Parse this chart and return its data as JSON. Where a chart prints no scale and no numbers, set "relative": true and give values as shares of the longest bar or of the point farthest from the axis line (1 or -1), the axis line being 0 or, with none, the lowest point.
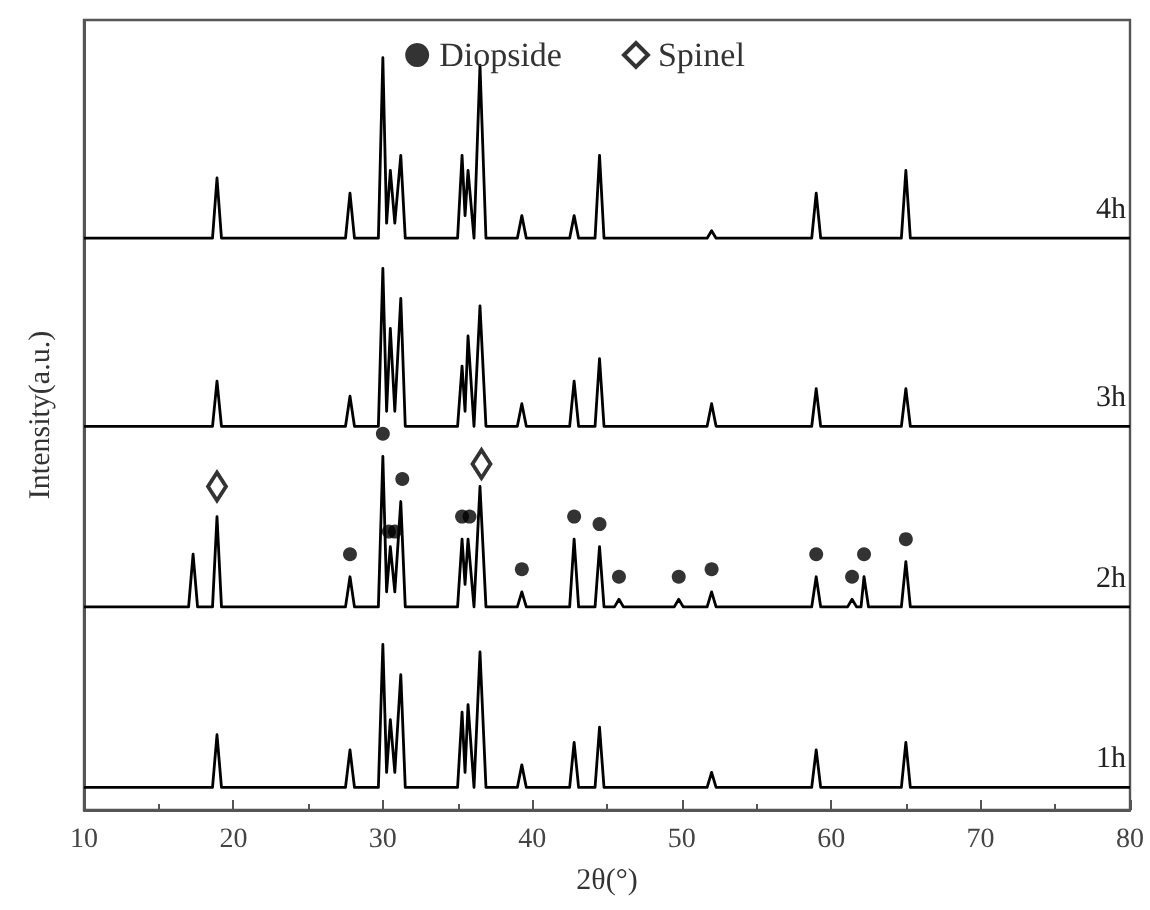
{
  "chart_data": {
    "type": "line",
    "relative": true,
    "xlabel": "2θ(°)",
    "ylabel": "Intensity(a.u.)",
    "xlim": [
      10,
      80
    ],
    "xticks": [
      10,
      20,
      30,
      40,
      50,
      60,
      70,
      80
    ],
    "grid": false,
    "legend": "top",
    "marker": "none",
    "line_style": "solid",
    "series": [
      {
        "name": "4h",
        "color": "#000000",
        "x": [
          10,
          18.6,
          18.9,
          19.2,
          27.5,
          27.8,
          28.1,
          29.7,
          30.0,
          30.25,
          30.5,
          30.8,
          31.2,
          31.5,
          35.0,
          35.3,
          35.5,
          35.7,
          36.1,
          36.5,
          36.9,
          39.0,
          39.3,
          39.6,
          42.5,
          42.8,
          43.1,
          44.2,
          44.5,
          44.8,
          51.7,
          52,
          52.3,
          58.7,
          59,
          59.3,
          64.7,
          65,
          65.3,
          80
        ],
        "values": [
          0.76,
          0.76,
          0.84,
          0.76,
          0.76,
          0.82,
          0.76,
          0.76,
          1.0,
          0.78,
          0.85,
          0.78,
          0.87,
          0.76,
          0.76,
          0.87,
          0.79,
          0.85,
          0.76,
          0.99,
          0.76,
          0.76,
          0.79,
          0.76,
          0.76,
          0.79,
          0.76,
          0.76,
          0.87,
          0.76,
          0.76,
          0.77,
          0.76,
          0.76,
          0.82,
          0.76,
          0.76,
          0.85,
          0.76,
          0.76
        ]
      },
      {
        "name": "3h",
        "color": "#000000",
        "x": [
          10,
          18.6,
          18.9,
          19.2,
          27.5,
          27.8,
          28.1,
          29.7,
          30.0,
          30.25,
          30.5,
          30.8,
          31.2,
          31.5,
          35.0,
          35.3,
          35.5,
          35.7,
          36.1,
          36.5,
          36.9,
          39.0,
          39.3,
          39.6,
          42.5,
          42.8,
          43.1,
          44.2,
          44.5,
          44.8,
          51.7,
          52,
          52.3,
          58.7,
          59,
          59.3,
          64.7,
          65,
          65.3,
          80
        ],
        "values": [
          0.51,
          0.51,
          0.57,
          0.51,
          0.51,
          0.55,
          0.51,
          0.51,
          0.72,
          0.53,
          0.64,
          0.53,
          0.68,
          0.51,
          0.51,
          0.59,
          0.53,
          0.63,
          0.51,
          0.67,
          0.51,
          0.51,
          0.54,
          0.51,
          0.51,
          0.57,
          0.51,
          0.51,
          0.6,
          0.51,
          0.51,
          0.54,
          0.51,
          0.51,
          0.56,
          0.51,
          0.51,
          0.56,
          0.51,
          0.51
        ]
      },
      {
        "name": "2h",
        "color": "#000000",
        "x": [
          10,
          17.0,
          17.3,
          17.6,
          18.6,
          18.9,
          19.2,
          27.5,
          27.8,
          28.1,
          29.7,
          30.0,
          30.25,
          30.5,
          30.8,
          31.2,
          31.5,
          35.0,
          35.3,
          35.5,
          35.7,
          36.1,
          36.5,
          36.9,
          39.0,
          39.3,
          39.6,
          42.5,
          42.8,
          43.1,
          44.2,
          44.5,
          44.8,
          45.5,
          45.8,
          46.1,
          49.5,
          49.8,
          50.1,
          51.7,
          52,
          52.3,
          58.7,
          59,
          59.3,
          61.1,
          61.4,
          61.7,
          62.0,
          62.2,
          62.5,
          64.7,
          65,
          65.3,
          80
        ],
        "values": [
          0.27,
          0.27,
          0.34,
          0.27,
          0.27,
          0.39,
          0.27,
          0.27,
          0.31,
          0.27,
          0.27,
          0.47,
          0.29,
          0.35,
          0.29,
          0.41,
          0.27,
          0.27,
          0.36,
          0.3,
          0.36,
          0.27,
          0.43,
          0.27,
          0.27,
          0.29,
          0.27,
          0.27,
          0.36,
          0.27,
          0.27,
          0.35,
          0.27,
          0.27,
          0.28,
          0.27,
          0.27,
          0.28,
          0.27,
          0.27,
          0.29,
          0.27,
          0.27,
          0.31,
          0.27,
          0.27,
          0.28,
          0.27,
          0.27,
          0.31,
          0.27,
          0.27,
          0.33,
          0.27,
          0.27
        ]
      },
      {
        "name": "1h",
        "color": "#000000",
        "x": [
          10,
          18.6,
          18.9,
          19.2,
          27.5,
          27.8,
          28.1,
          29.7,
          30.0,
          30.25,
          30.5,
          30.8,
          31.2,
          31.5,
          35.0,
          35.3,
          35.5,
          35.7,
          36.1,
          36.5,
          36.9,
          39.0,
          39.3,
          39.6,
          42.5,
          42.8,
          43.1,
          44.2,
          44.5,
          44.8,
          51.7,
          52,
          52.3,
          58.7,
          59,
          59.3,
          64.7,
          65,
          65.3,
          80
        ],
        "values": [
          0.03,
          0.03,
          0.1,
          0.03,
          0.03,
          0.08,
          0.03,
          0.03,
          0.22,
          0.05,
          0.12,
          0.05,
          0.18,
          0.03,
          0.03,
          0.13,
          0.05,
          0.14,
          0.03,
          0.21,
          0.03,
          0.03,
          0.06,
          0.03,
          0.03,
          0.09,
          0.03,
          0.03,
          0.11,
          0.03,
          0.03,
          0.05,
          0.03,
          0.03,
          0.08,
          0.03,
          0.03,
          0.09,
          0.03,
          0.03
        ]
      },
      {
        "name": "Diopside",
        "type": "scatter",
        "marker": "circle",
        "color": "#000000",
        "x": [
          27.8,
          30.0,
          30.4,
          30.8,
          31.3,
          35.3,
          35.8,
          39.3,
          42.8,
          44.5,
          45.8,
          49.8,
          52,
          59,
          61.4,
          62.2,
          65
        ],
        "values": [
          0.34,
          0.5,
          0.37,
          0.37,
          0.44,
          0.39,
          0.39,
          0.32,
          0.39,
          0.38,
          0.31,
          0.31,
          0.32,
          0.34,
          0.31,
          0.34,
          0.36
        ]
      },
      {
        "name": "Spinel",
        "type": "scatter",
        "marker": "diamond",
        "color": "#000000",
        "x": [
          18.9,
          36.6
        ],
        "values": [
          0.43,
          0.46
        ]
      }
    ]
  }
}
